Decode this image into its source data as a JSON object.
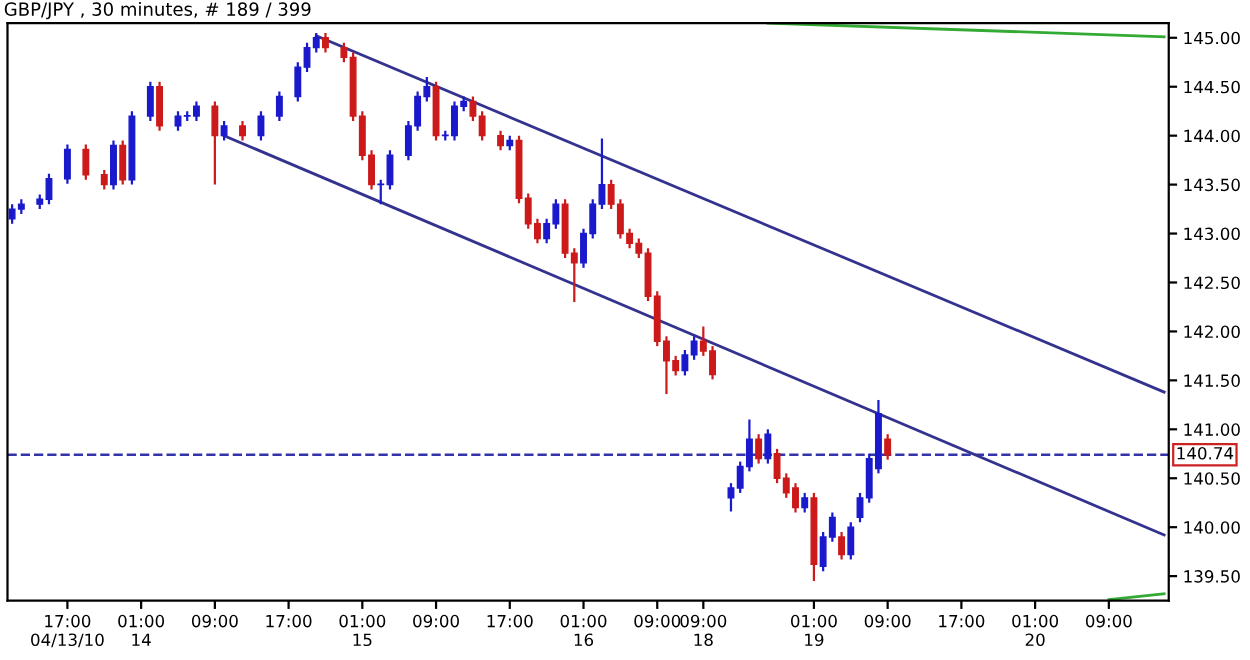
{
  "chart_data": {
    "type": "candlestick",
    "title": "GBP/JPY , 30 minutes, # 189 / 399",
    "categories": [
      null,
      null,
      null,
      null,
      null,
      null,
      "17:00\n04/13/10",
      null,
      null,
      null,
      null,
      null,
      null,
      null,
      "01:00\n14",
      null,
      null,
      null,
      null,
      null,
      null,
      null,
      "09:00",
      null,
      null,
      null,
      null,
      null,
      null,
      null,
      "17:00",
      null,
      null,
      null,
      null,
      null,
      null,
      null,
      "01:00\n15",
      null,
      null,
      null,
      null,
      null,
      null,
      null,
      "09:00",
      null,
      null,
      null,
      null,
      null,
      null,
      null,
      "17:00",
      null,
      null,
      null,
      null,
      null,
      null,
      null,
      "01:00\n16",
      null,
      null,
      null,
      null,
      null,
      null,
      null,
      "09:00",
      null,
      null,
      null,
      null,
      "09:00\n18",
      null,
      null,
      null,
      null,
      null,
      null,
      null,
      null,
      null,
      null,
      null,
      "01:00\n19",
      null,
      null,
      null,
      null,
      null,
      null,
      null,
      "09:00",
      null,
      null,
      null,
      null,
      null,
      null,
      null,
      "17:00",
      null,
      null,
      null,
      null,
      null,
      null,
      null,
      "01:00\n20",
      null,
      null,
      null,
      null,
      null,
      null,
      null,
      "09:00",
      null,
      null,
      null,
      null,
      null,
      null
    ],
    "ylim": [
      139.25,
      145.15
    ],
    "yticks": [
      {
        "value": 139.5,
        "label": "139.50"
      },
      {
        "value": 140,
        "label": "140.00"
      },
      {
        "value": 140.5,
        "label": "140.50"
      },
      {
        "value": 141,
        "label": "141.00"
      },
      {
        "value": 141.5,
        "label": "141.50"
      },
      {
        "value": 142,
        "label": "142.00"
      },
      {
        "value": 142.5,
        "label": "142.50"
      },
      {
        "value": 143,
        "label": "143.00"
      },
      {
        "value": 143.5,
        "label": "143.50"
      },
      {
        "value": 144,
        "label": "144.00"
      },
      {
        "value": 144.5,
        "label": "144.50"
      },
      {
        "value": 145,
        "label": "145.00"
      }
    ],
    "grid": false,
    "legend": false,
    "ref_lines": [
      {
        "axis": "y",
        "value": 140.74,
        "label": "140.74",
        "color": "#3333aa",
        "line_style": "dashed"
      }
    ],
    "series": [
      {
        "ohlc": [
          [
            143.15,
            143.3,
            143.1,
            143.25
          ],
          [
            143.25,
            143.35,
            143.2,
            143.3
          ],
          null,
          [
            143.3,
            143.4,
            143.25,
            143.35
          ],
          [
            143.35,
            143.61,
            143.3,
            143.56
          ],
          null,
          [
            143.56,
            143.91,
            143.51,
            143.86
          ],
          null,
          [
            143.86,
            143.91,
            143.55,
            143.6
          ],
          null,
          [
            143.6,
            143.65,
            143.45,
            143.5
          ],
          [
            143.5,
            143.95,
            143.45,
            143.9
          ],
          [
            143.9,
            143.95,
            143.5,
            143.55
          ],
          [
            143.55,
            144.25,
            143.5,
            144.2
          ],
          null,
          [
            144.2,
            144.55,
            144.15,
            144.5
          ],
          [
            144.5,
            144.55,
            144.05,
            144.1
          ],
          null,
          [
            144.1,
            144.25,
            144.05,
            144.2
          ],
          [
            144.2,
            144.25,
            144.15,
            144.2
          ],
          [
            144.2,
            144.35,
            144.15,
            144.3
          ],
          null,
          [
            144.3,
            144.35,
            143.5,
            144.0
          ],
          [
            144.0,
            144.15,
            143.95,
            144.1
          ],
          null,
          [
            144.1,
            144.15,
            143.95,
            144.0
          ],
          null,
          [
            144.0,
            144.25,
            143.95,
            144.2
          ],
          null,
          [
            144.2,
            144.45,
            144.15,
            144.4
          ],
          null,
          [
            144.4,
            144.75,
            144.35,
            144.7
          ],
          [
            144.7,
            144.95,
            144.65,
            144.9
          ],
          [
            144.9,
            145.05,
            144.85,
            145.0
          ],
          [
            145.0,
            145.05,
            144.85,
            144.9
          ],
          null,
          [
            144.9,
            144.95,
            144.75,
            144.8
          ],
          [
            144.8,
            144.85,
            144.15,
            144.2
          ],
          [
            144.2,
            144.25,
            143.75,
            143.8
          ],
          [
            143.8,
            143.85,
            143.45,
            143.5
          ],
          [
            143.5,
            143.55,
            143.3,
            143.5
          ],
          [
            143.5,
            143.85,
            143.45,
            143.8
          ],
          null,
          [
            143.8,
            144.15,
            143.75,
            144.1
          ],
          [
            144.1,
            144.45,
            144.05,
            144.4
          ],
          [
            144.4,
            144.6,
            144.35,
            144.5
          ],
          [
            144.5,
            144.55,
            143.95,
            144.0
          ],
          [
            144.0,
            144.05,
            143.95,
            144.0
          ],
          [
            144.0,
            144.35,
            143.95,
            144.3
          ],
          [
            144.3,
            144.4,
            144.25,
            144.35
          ],
          [
            144.35,
            144.4,
            144.15,
            144.2
          ],
          [
            144.2,
            144.25,
            143.95,
            144.0
          ],
          null,
          [
            144.0,
            144.05,
            143.85,
            143.9
          ],
          [
            143.9,
            144.0,
            143.85,
            143.95
          ],
          [
            143.95,
            144.0,
            143.31,
            143.36
          ],
          [
            143.36,
            143.41,
            143.05,
            143.1
          ],
          [
            143.1,
            143.15,
            142.9,
            142.95
          ],
          [
            142.95,
            143.15,
            142.9,
            143.1
          ],
          [
            143.1,
            143.35,
            143.05,
            143.3
          ],
          [
            143.3,
            143.35,
            142.75,
            142.8
          ],
          [
            142.8,
            142.85,
            142.3,
            142.7
          ],
          [
            142.7,
            143.05,
            142.65,
            143.0
          ],
          [
            143.0,
            143.35,
            142.95,
            143.3
          ],
          [
            143.3,
            143.97,
            143.25,
            143.5
          ],
          [
            143.5,
            143.55,
            143.25,
            143.3
          ],
          [
            143.3,
            143.35,
            142.95,
            143.0
          ],
          [
            143.0,
            143.05,
            142.85,
            142.9
          ],
          [
            142.9,
            142.95,
            142.75,
            142.8
          ],
          [
            142.8,
            142.85,
            142.31,
            142.36
          ],
          [
            142.36,
            142.41,
            141.85,
            141.9
          ],
          [
            141.9,
            141.95,
            141.36,
            141.7
          ],
          [
            141.7,
            141.75,
            141.55,
            141.6
          ],
          [
            141.6,
            141.81,
            141.55,
            141.76
          ],
          [
            141.76,
            141.95,
            141.71,
            141.9
          ],
          [
            141.9,
            142.05,
            141.75,
            141.8
          ],
          [
            141.8,
            141.85,
            141.51,
            141.56
          ],
          null,
          [
            140.3,
            140.45,
            140.16,
            140.4
          ],
          [
            140.4,
            140.67,
            140.35,
            140.62
          ],
          [
            140.62,
            141.1,
            140.57,
            140.9
          ],
          [
            140.9,
            140.95,
            140.65,
            140.7
          ],
          [
            140.7,
            141.0,
            140.65,
            140.95
          ],
          [
            140.75,
            140.8,
            140.45,
            140.5
          ],
          [
            140.5,
            140.55,
            140.3,
            140.35
          ],
          [
            140.4,
            140.45,
            140.15,
            140.2
          ],
          [
            140.2,
            140.35,
            140.15,
            140.3
          ],
          [
            140.3,
            140.35,
            139.45,
            139.62
          ],
          [
            139.6,
            139.95,
            139.55,
            139.9
          ],
          [
            139.9,
            140.15,
            139.85,
            140.1
          ],
          [
            139.9,
            139.95,
            139.67,
            139.72
          ],
          [
            139.72,
            140.05,
            139.67,
            140.0
          ],
          [
            140.1,
            140.35,
            140.05,
            140.3
          ],
          [
            140.3,
            140.75,
            140.25,
            140.7
          ],
          [
            140.6,
            141.3,
            140.55,
            141.16
          ],
          [
            140.9,
            140.95,
            140.69,
            140.74
          ],
          null,
          null,
          null,
          null,
          null,
          null,
          null,
          null,
          null,
          null,
          null,
          null,
          null,
          null,
          null,
          null,
          null,
          null,
          null,
          null,
          null,
          null,
          null,
          null,
          null,
          null,
          null,
          null,
          null,
          null
        ],
        "colors": [
          "#1a1acc",
          "#1a1acc",
          null,
          "#1a1acc",
          "#1a1acc",
          null,
          "#1a1acc",
          null,
          "#cc1a1a",
          null,
          "#cc1a1a",
          "#1a1acc",
          "#cc1a1a",
          "#1a1acc",
          null,
          "#1a1acc",
          "#cc1a1a",
          null,
          "#1a1acc",
          "#1a1acc",
          "#1a1acc",
          null,
          "#cc1a1a",
          "#1a1acc",
          null,
          "#cc1a1a",
          null,
          "#1a1acc",
          null,
          "#1a1acc",
          null,
          "#1a1acc",
          "#1a1acc",
          "#1a1acc",
          "#cc1a1a",
          null,
          "#cc1a1a",
          "#cc1a1a",
          "#cc1a1a",
          "#cc1a1a",
          "#1a1acc",
          "#1a1acc",
          null,
          "#1a1acc",
          "#1a1acc",
          "#1a1acc",
          "#cc1a1a",
          "#1a1acc",
          "#1a1acc",
          "#1a1acc",
          "#cc1a1a",
          "#cc1a1a",
          null,
          "#cc1a1a",
          "#1a1acc",
          "#cc1a1a",
          "#cc1a1a",
          "#cc1a1a",
          "#1a1acc",
          "#1a1acc",
          "#cc1a1a",
          "#cc1a1a",
          "#1a1acc",
          "#1a1acc",
          "#1a1acc",
          "#cc1a1a",
          "#cc1a1a",
          "#cc1a1a",
          "#cc1a1a",
          "#cc1a1a",
          "#cc1a1a",
          "#cc1a1a",
          "#cc1a1a",
          "#1a1acc",
          "#1a1acc",
          "#cc1a1a",
          "#cc1a1a",
          null,
          "#1a1acc",
          "#1a1acc",
          "#1a1acc",
          "#cc1a1a",
          "#1a1acc",
          "#cc1a1a",
          "#cc1a1a",
          "#cc1a1a",
          "#1a1acc",
          "#cc1a1a",
          "#1a1acc",
          "#1a1acc",
          "#cc1a1a",
          "#1a1acc",
          "#1a1acc",
          "#1a1acc",
          "#1a1acc",
          "#cc1a1a",
          null,
          null,
          null,
          null,
          null,
          null,
          null,
          null,
          null,
          null,
          null,
          null,
          null,
          null,
          null,
          null,
          null,
          null,
          null,
          null,
          null,
          null,
          null,
          null,
          null,
          null,
          null,
          null,
          null,
          null
        ]
      },
      {
        "type": "line",
        "color": "#33338f",
        "values": [
          null,
          null,
          null,
          null,
          null,
          null,
          null,
          null,
          null,
          null,
          null,
          null,
          null,
          null,
          null,
          null,
          null,
          null,
          null,
          null,
          null,
          null,
          null,
          null,
          null,
          null,
          null,
          null,
          null,
          null,
          null,
          null,
          null,
          145.02,
          null,
          null,
          null,
          null,
          null,
          null,
          null,
          null,
          null,
          null,
          null,
          null,
          null,
          null,
          null,
          null,
          null,
          null,
          null,
          null,
          null,
          null,
          null,
          null,
          null,
          null,
          null,
          null,
          null,
          null,
          null,
          null,
          null,
          null,
          null,
          null,
          null,
          null,
          null,
          null,
          null,
          null,
          null,
          null,
          null,
          null,
          null,
          null,
          null,
          null,
          null,
          null,
          null,
          null,
          null,
          null,
          null,
          null,
          null,
          null,
          null,
          null,
          null,
          null,
          null,
          null,
          null,
          null,
          null,
          null,
          null,
          null,
          null,
          null,
          null,
          null,
          null,
          null,
          null,
          null,
          null,
          null,
          null,
          null,
          null,
          null,
          null,
          null,
          null,
          null,
          null,
          141.38
        ]
      },
      {
        "type": "line",
        "color": "#33338f",
        "values": [
          null,
          null,
          null,
          null,
          null,
          null,
          null,
          null,
          null,
          null,
          null,
          null,
          null,
          null,
          null,
          null,
          null,
          null,
          null,
          null,
          null,
          null,
          null,
          144.0,
          null,
          null,
          null,
          null,
          null,
          null,
          null,
          null,
          null,
          null,
          null,
          null,
          null,
          null,
          null,
          null,
          null,
          null,
          null,
          null,
          null,
          null,
          null,
          null,
          null,
          null,
          null,
          null,
          null,
          null,
          null,
          null,
          null,
          null,
          null,
          null,
          null,
          null,
          null,
          null,
          null,
          null,
          null,
          null,
          null,
          null,
          null,
          null,
          null,
          null,
          null,
          null,
          null,
          null,
          null,
          null,
          null,
          null,
          null,
          null,
          null,
          null,
          null,
          null,
          null,
          null,
          null,
          null,
          null,
          null,
          null,
          null,
          null,
          null,
          null,
          null,
          null,
          null,
          null,
          null,
          null,
          null,
          null,
          null,
          null,
          null,
          null,
          null,
          null,
          null,
          null,
          null,
          null,
          null,
          null,
          null,
          null,
          null,
          null,
          null,
          null,
          139.92
        ]
      },
      {
        "type": "line",
        "color": "#33aa33",
        "values": [
          null,
          null,
          null,
          null,
          null,
          null,
          null,
          null,
          null,
          null,
          null,
          null,
          null,
          null,
          null,
          null,
          null,
          null,
          null,
          null,
          null,
          null,
          null,
          null,
          null,
          null,
          null,
          null,
          null,
          null,
          null,
          null,
          null,
          null,
          null,
          null,
          null,
          null,
          null,
          null,
          null,
          null,
          null,
          null,
          null,
          null,
          null,
          null,
          null,
          null,
          null,
          null,
          null,
          null,
          null,
          null,
          null,
          null,
          null,
          null,
          null,
          null,
          null,
          null,
          null,
          null,
          null,
          null,
          null,
          null,
          null,
          null,
          null,
          null,
          null,
          null,
          null,
          null,
          null,
          null,
          null,
          null,
          145.15,
          null,
          null,
          null,
          null,
          null,
          null,
          null,
          null,
          null,
          null,
          null,
          null,
          null,
          null,
          null,
          null,
          null,
          null,
          null,
          null,
          null,
          null,
          null,
          null,
          null,
          null,
          null,
          null,
          null,
          null,
          null,
          null,
          null,
          null,
          null,
          null,
          null,
          null,
          null,
          null,
          null,
          null,
          145.01
        ]
      },
      {
        "type": "line",
        "color": "#33aa33",
        "values": [
          null,
          null,
          null,
          null,
          null,
          null,
          null,
          null,
          null,
          null,
          null,
          null,
          null,
          null,
          null,
          null,
          null,
          null,
          null,
          null,
          null,
          null,
          null,
          null,
          null,
          null,
          null,
          null,
          null,
          null,
          null,
          null,
          null,
          null,
          null,
          null,
          null,
          null,
          null,
          null,
          null,
          null,
          null,
          null,
          null,
          null,
          null,
          null,
          null,
          null,
          null,
          null,
          null,
          null,
          null,
          null,
          null,
          null,
          null,
          null,
          null,
          null,
          null,
          null,
          null,
          null,
          null,
          null,
          null,
          null,
          null,
          null,
          null,
          null,
          null,
          null,
          null,
          null,
          null,
          null,
          null,
          null,
          null,
          null,
          null,
          null,
          null,
          null,
          null,
          null,
          null,
          null,
          null,
          null,
          null,
          null,
          null,
          null,
          null,
          null,
          null,
          null,
          null,
          null,
          null,
          null,
          null,
          null,
          null,
          null,
          null,
          null,
          null,
          null,
          null,
          null,
          null,
          null,
          null,
          139.26,
          null,
          null,
          null,
          null,
          null,
          139.32
        ]
      }
    ]
  }
}
